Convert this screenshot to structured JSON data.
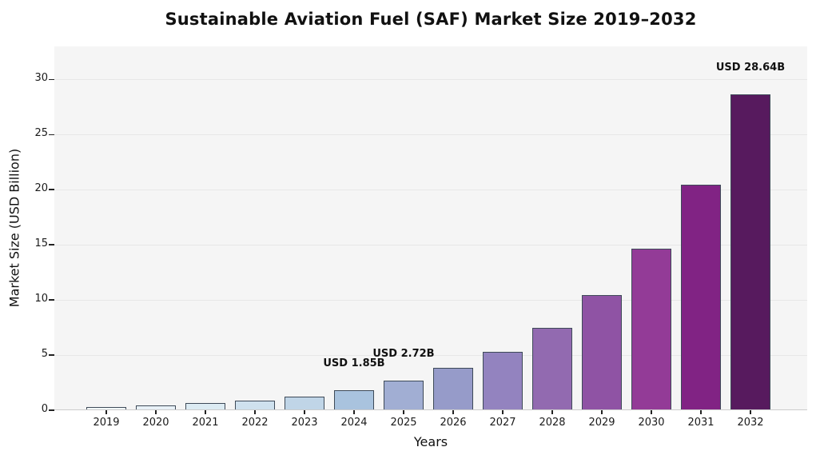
{
  "chart_data": {
    "type": "bar",
    "title": "Sustainable Aviation Fuel (SAF) Market Size 2019–2032",
    "xlabel": "Years",
    "ylabel": "Market Size (USD Billion)",
    "categories": [
      "2019",
      "2020",
      "2021",
      "2022",
      "2023",
      "2024",
      "2025",
      "2026",
      "2027",
      "2028",
      "2029",
      "2030",
      "2031",
      "2032"
    ],
    "values": [
      0.29,
      0.43,
      0.63,
      0.87,
      1.26,
      1.85,
      2.72,
      3.81,
      5.33,
      7.46,
      10.45,
      14.63,
      20.48,
      28.64
    ],
    "bar_colors": [
      "#f2f8fa",
      "#e8f1f7",
      "#dcebf3",
      "#cfe1ee",
      "#c0d5e7",
      "#a9c3de",
      "#a1aed3",
      "#969bc9",
      "#9383bf",
      "#926ab0",
      "#8f53a4",
      "#933b97",
      "#812384",
      "#571a5e"
    ],
    "edge_color": "#3e4a58",
    "yticks": [
      0,
      5,
      10,
      15,
      20,
      25,
      30
    ],
    "ylim": [
      0,
      33
    ],
    "grid": true,
    "legend": null,
    "plot_bg_color": "#f5f5f5",
    "grid_color": "#e7e7e7",
    "annotations": [
      {
        "category": "2024",
        "text": "USD 1.85B"
      },
      {
        "category": "2025",
        "text": "USD 2.72B"
      },
      {
        "category": "2032",
        "text": "USD 28.64B"
      }
    ]
  }
}
